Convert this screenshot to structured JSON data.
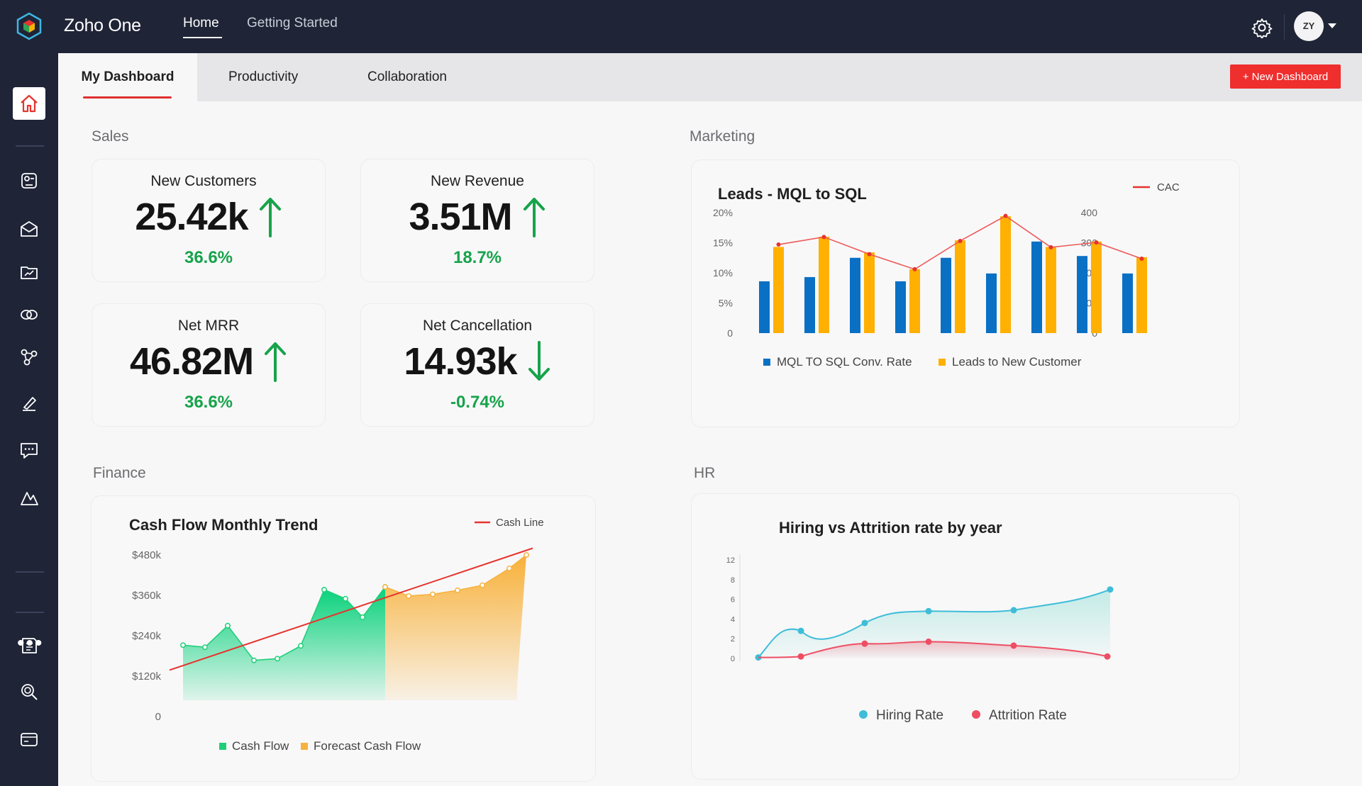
{
  "app": {
    "brand": "Zoho One",
    "nav": [
      "Home",
      "Getting Started"
    ],
    "avatar_initials": "ZY"
  },
  "tabs": [
    "My Dashboard",
    "Productivity",
    "Collaboration"
  ],
  "new_dashboard_label": "+ New Dashboard",
  "sections": {
    "sales": "Sales",
    "marketing": "Marketing",
    "finance": "Finance",
    "hr": "HR"
  },
  "kpis": [
    {
      "label": "New Customers",
      "value": "25.42k",
      "change": "36.6%",
      "trend": "up"
    },
    {
      "label": "New Revenue",
      "value": "3.51M",
      "change": "18.7%",
      "trend": "up"
    },
    {
      "label": "Net MRR",
      "value": "46.82M",
      "change": "36.6%",
      "trend": "up"
    },
    {
      "label": "Net Cancellation",
      "value": "14.93k",
      "change": "-0.74%",
      "trend": "down"
    }
  ],
  "colors": {
    "accent_red": "#ef2e2e",
    "up_green": "#17a34a",
    "blue": "#0a70c4",
    "orange": "#ffb000",
    "teal": "#3fbdd8",
    "pink": "#ee4e63"
  },
  "chart_data": [
    {
      "type": "bar",
      "title": "Leads - MQL to SQL",
      "yticks_left": [
        "20%",
        "15%",
        "10%",
        "5%",
        "0"
      ],
      "yticks_right": [
        "400",
        "300",
        "200",
        "100",
        "0"
      ],
      "ylim_left": [
        0,
        20
      ],
      "ylim_right": [
        0,
        400
      ],
      "series": [
        {
          "name": "MQL TO SQL Conv. Rate",
          "values": [
            8.6,
            9.3,
            12.5,
            8.6,
            12.5,
            9.9,
            15.2,
            12.8,
            9.9
          ]
        },
        {
          "name": "Leads to New Customer",
          "values": [
            14.3,
            16.0,
            13.4,
            10.6,
            15.4,
            19.4,
            14.3,
            15.2,
            12.6
          ]
        },
        {
          "name": "CAC",
          "values": [
            294,
            319,
            262,
            212,
            306,
            389,
            285,
            301,
            247
          ]
        }
      ]
    },
    {
      "type": "area",
      "title": "Cash Flow Monthly Trend",
      "yticks": [
        "$480k",
        "$360k",
        "$240k",
        "$120k",
        "0"
      ],
      "ylim": [
        0,
        480
      ],
      "series": [
        {
          "name": "Cash Flow",
          "values": [
            212,
            206,
            270,
            167,
            172,
            210,
            377,
            350,
            295,
            385
          ]
        },
        {
          "name": "Forecast Cash Flow",
          "values": [
            385,
            358,
            363,
            375,
            390,
            440,
            480
          ]
        },
        {
          "name": "Cash Line",
          "values": [
            138,
            500
          ]
        }
      ]
    },
    {
      "type": "line",
      "title": "Hiring vs Attrition rate by year",
      "yticks": [
        "12",
        "8",
        "6",
        "4",
        "2",
        "0"
      ],
      "series": [
        {
          "name": "Hiring Rate",
          "values": [
            0.1,
            2.8,
            1.5,
            3.6,
            4.8,
            5.4,
            7.0
          ]
        },
        {
          "name": "Attrition Rate",
          "values": [
            0.1,
            0.2,
            1.5,
            1.7,
            1.3,
            0.2
          ]
        }
      ]
    }
  ]
}
